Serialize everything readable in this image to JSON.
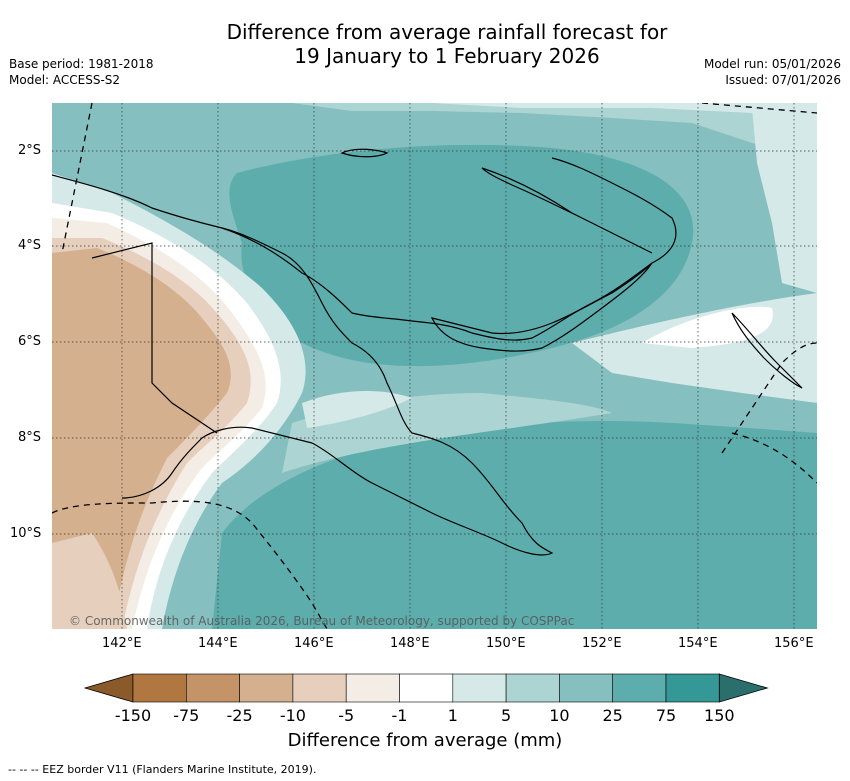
{
  "title_line1": "Difference from average rainfall forecast for",
  "title_line2": "19 January to 1 February 2026",
  "base_period": "Base period: 1981-2018",
  "model": "Model: ACCESS-S2",
  "model_run": "Model run: 05/01/2026",
  "issued": "Issued: 07/01/2026",
  "lat_labels": [
    "2°S",
    "4°S",
    "6°S",
    "8°S",
    "10°S"
  ],
  "lon_labels": [
    "142°E",
    "144°E",
    "146°E",
    "148°E",
    "150°E",
    "152°E",
    "154°E",
    "156°E"
  ],
  "copyright": "© Commonwealth of Australia 2026, Bureau of Meteorology, supported by COSPPac",
  "colorbar": {
    "ticks": [
      "-150",
      "-75",
      "-25",
      "-10",
      "-5",
      "-1",
      "1",
      "5",
      "10",
      "25",
      "75",
      "150"
    ],
    "colors": [
      "#8b5a2b",
      "#b07840",
      "#c49468",
      "#d5b08e",
      "#e7cfbd",
      "#f4ede6",
      "#ffffff",
      "#d4e9e8",
      "#acd4d3",
      "#86bfbf",
      "#5eadad",
      "#339896",
      "#2a6f6c"
    ],
    "label": "Difference from average (mm)"
  },
  "eez_legend": "-- --  -- EEZ border V11 (Flanders Marine Institute, 2019)."
}
